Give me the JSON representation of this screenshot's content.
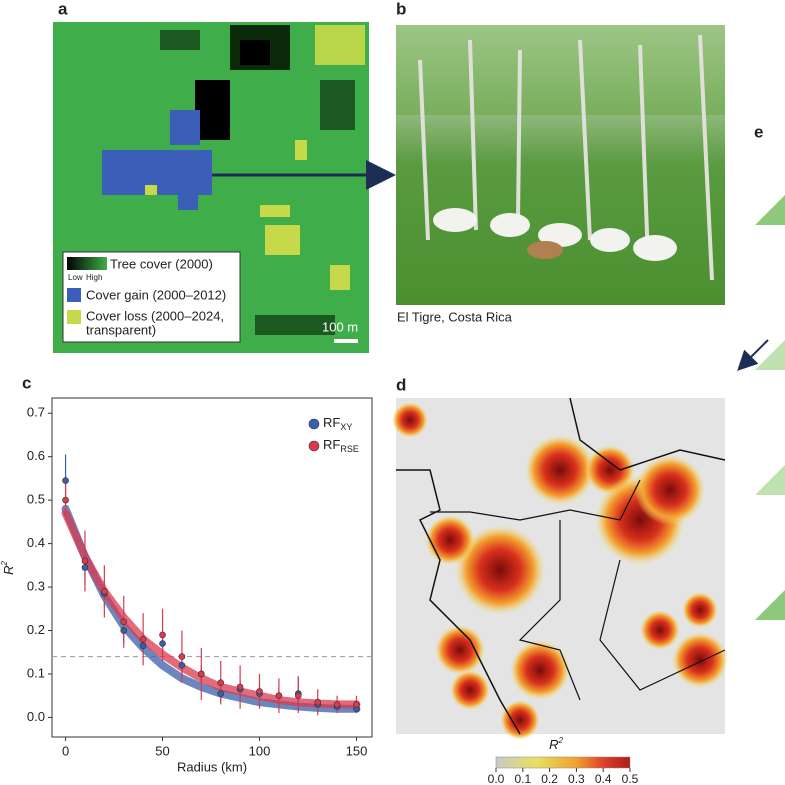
{
  "panels": {
    "a": {
      "label": "a",
      "legend": {
        "tree_cover": "Tree cover (2000)",
        "low": "Low",
        "high": "High",
        "gain": "Cover gain (2000–2012)",
        "loss_line1": "Cover loss (2000–2024,",
        "loss_line2": "transparent)"
      },
      "scale": "100 m"
    },
    "b": {
      "label": "b",
      "caption": "El Tigre, Costa Rica"
    },
    "c": {
      "label": "c"
    },
    "d": {
      "label": "d",
      "colorbar": {
        "label": "R",
        "label_sup": "2",
        "lim": [
          0,
          0.5
        ],
        "ticks": [
          {
            "value": 0,
            "label": "0.0"
          },
          {
            "value": 0.1,
            "label": "0.1"
          },
          {
            "value": 0.2,
            "label": "0.2"
          },
          {
            "value": 0.3,
            "label": "0.3"
          },
          {
            "value": 0.4,
            "label": "0.4"
          },
          {
            "value": 0.5,
            "label": "0.5"
          }
        ]
      }
    },
    "e": {
      "label": "e"
    }
  },
  "chart_data": {
    "type": "scatter",
    "xlabel": "Radius (km)",
    "ylabel": "R",
    "ylabel_sup": "2",
    "x": [
      0,
      10,
      20,
      30,
      40,
      50,
      60,
      70,
      80,
      90,
      100,
      110,
      120,
      130,
      140,
      150
    ],
    "xlim": [
      -7,
      158
    ],
    "ylim": [
      -0.045,
      0.735
    ],
    "xticks": [
      0,
      50,
      100,
      150
    ],
    "yticks": [
      {
        "value": 0,
        "label": "0.0"
      },
      {
        "value": 0.1,
        "label": "0.1"
      },
      {
        "value": 0.2,
        "label": "0.2"
      },
      {
        "value": 0.3,
        "label": "0.3"
      },
      {
        "value": 0.4,
        "label": "0.4"
      },
      {
        "value": 0.5,
        "label": "0.5"
      },
      {
        "value": 0.6,
        "label": "0.6"
      },
      {
        "value": 0.7,
        "label": "0.7"
      }
    ],
    "reference_line": 0.14,
    "series": [
      {
        "name": "RF",
        "name_sub": "XY",
        "color": "#3b5ea8",
        "values": [
          0.545,
          0.345,
          0.285,
          0.2,
          0.165,
          0.17,
          0.12,
          0.1,
          0.055,
          0.065,
          0.055,
          0.05,
          0.055,
          0.03,
          0.025,
          0.02
        ],
        "errors": [
          0.06,
          0.04,
          0.03,
          0.03,
          0.02,
          0.02,
          0.02,
          0.02,
          0.02,
          0.02,
          0.02,
          0.02,
          0.04,
          0.01,
          0.01,
          0.01
        ],
        "fit": [
          0.48,
          0.37,
          0.28,
          0.21,
          0.16,
          0.12,
          0.09,
          0.07,
          0.055,
          0.045,
          0.035,
          0.03,
          0.025,
          0.022,
          0.02,
          0.02
        ]
      },
      {
        "name": "RF",
        "name_sub": "RSE",
        "color": "#d93a4f",
        "values": [
          0.5,
          0.36,
          0.29,
          0.22,
          0.18,
          0.19,
          0.14,
          0.1,
          0.08,
          0.07,
          0.06,
          0.05,
          0.05,
          0.035,
          0.03,
          0.03
        ],
        "errors": [
          0.04,
          0.07,
          0.06,
          0.06,
          0.06,
          0.06,
          0.06,
          0.06,
          0.05,
          0.05,
          0.04,
          0.04,
          0.04,
          0.03,
          0.02,
          0.02
        ],
        "fit": [
          0.47,
          0.37,
          0.29,
          0.23,
          0.18,
          0.145,
          0.115,
          0.09,
          0.07,
          0.06,
          0.05,
          0.04,
          0.035,
          0.032,
          0.03,
          0.03
        ]
      }
    ]
  }
}
